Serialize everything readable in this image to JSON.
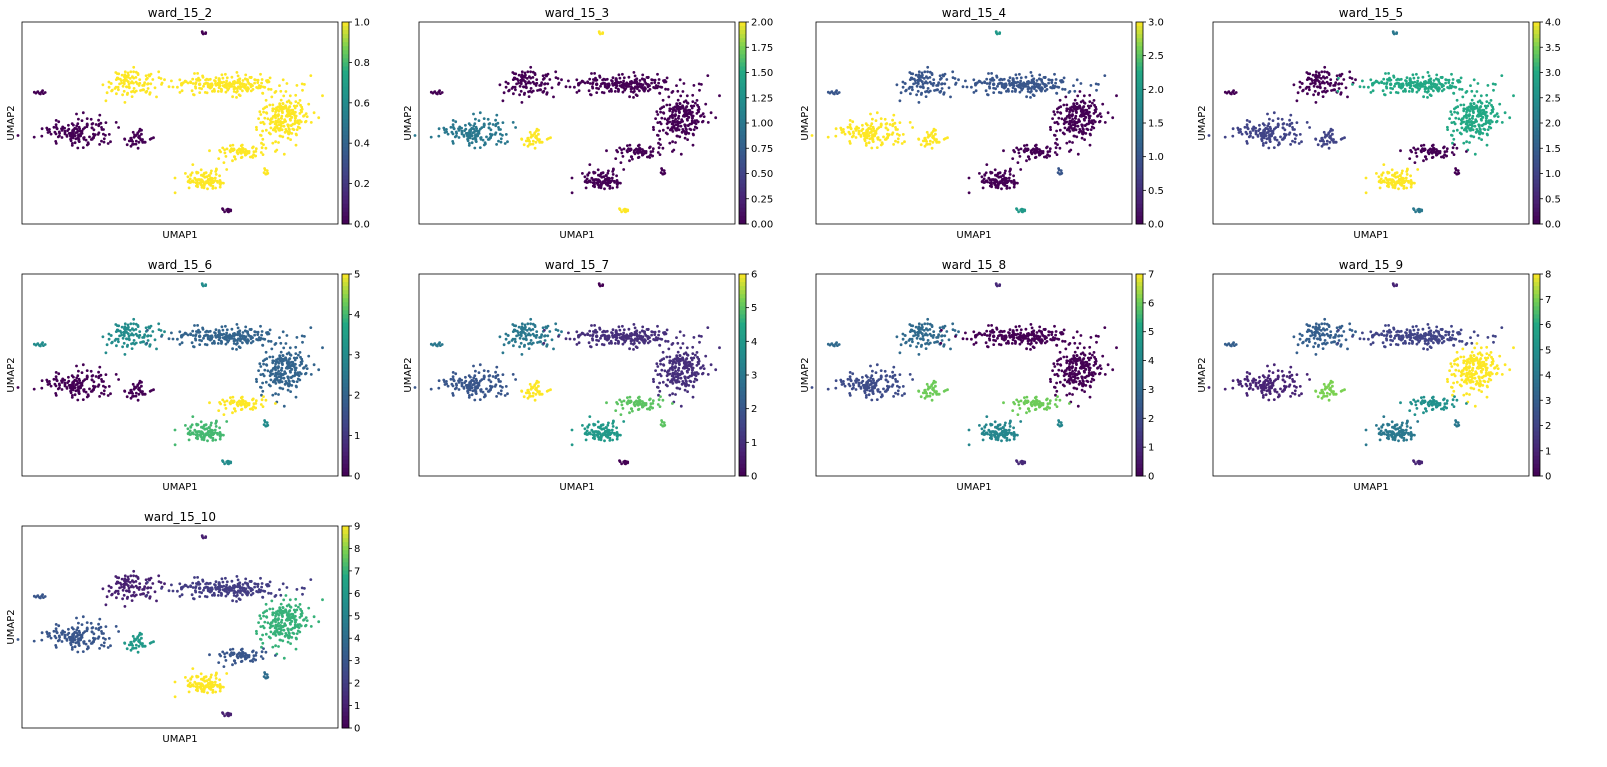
{
  "figure": {
    "description_colormap": "viridis",
    "marker_colors": [
      "#440154",
      "#3b528b",
      "#21918c",
      "#5ec962",
      "#fde725"
    ]
  },
  "chart_data": [
    {
      "type": "scatter",
      "title": "ward_15_2",
      "xlabel": "UMAP1",
      "ylabel": "UMAP2",
      "colorbar_ticks": [
        "0.0",
        "0.2",
        "0.4",
        "0.6",
        "0.8",
        "1.0"
      ],
      "colorbar_range": [
        0,
        1
      ],
      "cluster_color_values": [
        0,
        0,
        0,
        1,
        1,
        1,
        1,
        1,
        1,
        0
      ]
    },
    {
      "type": "scatter",
      "title": "ward_15_3",
      "xlabel": "UMAP1",
      "ylabel": "UMAP2",
      "colorbar_ticks": [
        "0.00",
        "0.25",
        "0.50",
        "0.75",
        "1.00",
        "1.25",
        "1.50",
        "1.75",
        "2.00"
      ],
      "colorbar_range": [
        0,
        2
      ],
      "cluster_color_values": [
        0,
        1,
        2,
        0,
        0,
        0,
        0,
        0,
        0,
        2
      ]
    },
    {
      "type": "scatter",
      "title": "ward_15_4",
      "xlabel": "UMAP1",
      "ylabel": "UMAP2",
      "colorbar_ticks": [
        "0.0",
        "0.5",
        "1.0",
        "1.5",
        "2.0",
        "2.5",
        "3.0"
      ],
      "colorbar_range": [
        0,
        3
      ],
      "cluster_color_values": [
        1,
        3,
        3,
        1,
        1,
        0,
        0,
        0,
        1,
        2
      ]
    },
    {
      "type": "scatter",
      "title": "ward_15_5",
      "xlabel": "UMAP1",
      "ylabel": "UMAP2",
      "colorbar_ticks": [
        "0.0",
        "0.5",
        "1.0",
        "1.5",
        "2.0",
        "2.5",
        "3.0",
        "3.5",
        "4.0"
      ],
      "colorbar_range": [
        0,
        4
      ],
      "cluster_color_values": [
        0,
        1,
        1,
        0,
        3,
        3,
        4,
        0,
        0,
        2
      ]
    },
    {
      "type": "scatter",
      "title": "ward_15_6",
      "xlabel": "UMAP1",
      "ylabel": "UMAP2",
      "colorbar_ticks": [
        "0",
        "1",
        "2",
        "3",
        "4",
        "5"
      ],
      "colorbar_range": [
        0,
        5
      ],
      "cluster_color_values": [
        3,
        0,
        0,
        3,
        2,
        2,
        4,
        5,
        3,
        3
      ]
    },
    {
      "type": "scatter",
      "title": "ward_15_7",
      "xlabel": "UMAP1",
      "ylabel": "UMAP2",
      "colorbar_ticks": [
        "0",
        "1",
        "2",
        "3",
        "4",
        "5",
        "6"
      ],
      "colorbar_range": [
        0,
        6
      ],
      "cluster_color_values": [
        3,
        2,
        6,
        3,
        1,
        1,
        4,
        5,
        5,
        0
      ]
    },
    {
      "type": "scatter",
      "title": "ward_15_8",
      "xlabel": "UMAP1",
      "ylabel": "UMAP2",
      "colorbar_ticks": [
        "0",
        "1",
        "2",
        "3",
        "4",
        "5",
        "6",
        "7"
      ],
      "colorbar_range": [
        0,
        7
      ],
      "cluster_color_values": [
        3,
        2,
        6,
        3,
        0,
        0,
        4,
        6,
        4,
        1
      ]
    },
    {
      "type": "scatter",
      "title": "ward_15_9",
      "xlabel": "UMAP1",
      "ylabel": "UMAP2",
      "colorbar_ticks": [
        "0",
        "1",
        "2",
        "3",
        "4",
        "5",
        "6",
        "7",
        "8"
      ],
      "colorbar_range": [
        0,
        8
      ],
      "cluster_color_values": [
        3,
        1,
        7,
        3,
        2,
        8,
        4,
        5,
        4,
        1
      ]
    },
    {
      "type": "scatter",
      "title": "ward_15_10",
      "xlabel": "UMAP1",
      "ylabel": "UMAP2",
      "colorbar_ticks": [
        "0",
        "1",
        "2",
        "3",
        "4",
        "5",
        "6",
        "7",
        "8",
        "9"
      ],
      "colorbar_range": [
        0,
        9
      ],
      "cluster_color_values": [
        3,
        3,
        6,
        1,
        2,
        7,
        9,
        3,
        4,
        1
      ]
    }
  ]
}
